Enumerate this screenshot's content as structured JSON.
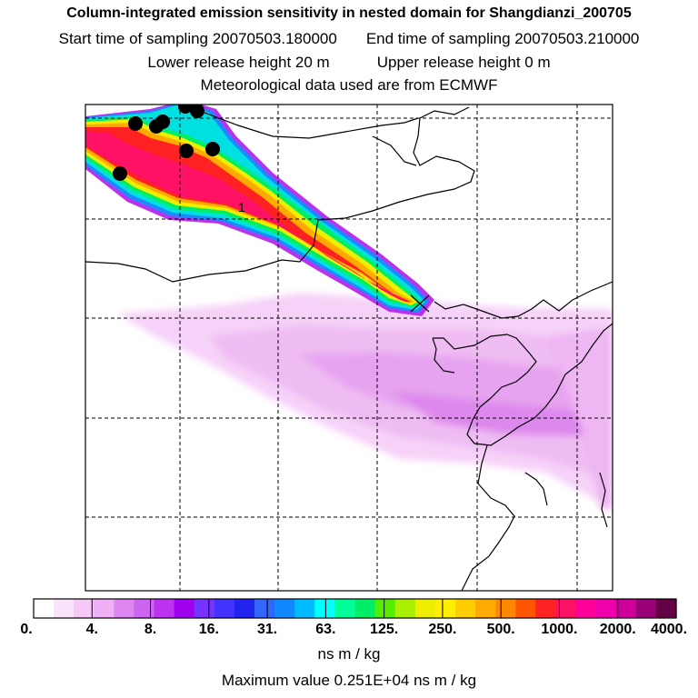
{
  "header": {
    "title": "Column-integrated emission sensitivity in nested domain for Shangdianzi_200705",
    "start_label": "Start time of sampling 20070503.180000",
    "end_label": "End time of sampling 20070503.210000",
    "lower_label": "Lower release height   20 m",
    "upper_label": "Upper release height    0 m",
    "met_label": "Meteorological data used are from ECMWF"
  },
  "map": {
    "plume_label": "1"
  },
  "colorbar": {
    "colors": [
      "#ffffff",
      "#fbe4fb",
      "#f6c8f8",
      "#efb0f5",
      "#de86f0",
      "#cc66ee",
      "#bb33ee",
      "#a000f0",
      "#7733ff",
      "#4433ff",
      "#2222ee",
      "#3366ff",
      "#1188ff",
      "#00bbff",
      "#00ffff",
      "#00ff99",
      "#00ee66",
      "#55ee00",
      "#aaee00",
      "#eeee00",
      "#ffee00",
      "#ffcc00",
      "#ffaa00",
      "#ff8800",
      "#ff5500",
      "#ff2222",
      "#ff1166",
      "#ff0099",
      "#ee00aa",
      "#cc0099",
      "#990077",
      "#660044"
    ],
    "labels": [
      "0.",
      "4.",
      "8.",
      "16.",
      "31.",
      "63.",
      "125.",
      "250.",
      "500.",
      "1000.",
      "2000.",
      "4000."
    ],
    "units": "ns m / kg"
  },
  "footer": {
    "max_label": "Maximum value  0.251E+04 ns m / kg"
  }
}
